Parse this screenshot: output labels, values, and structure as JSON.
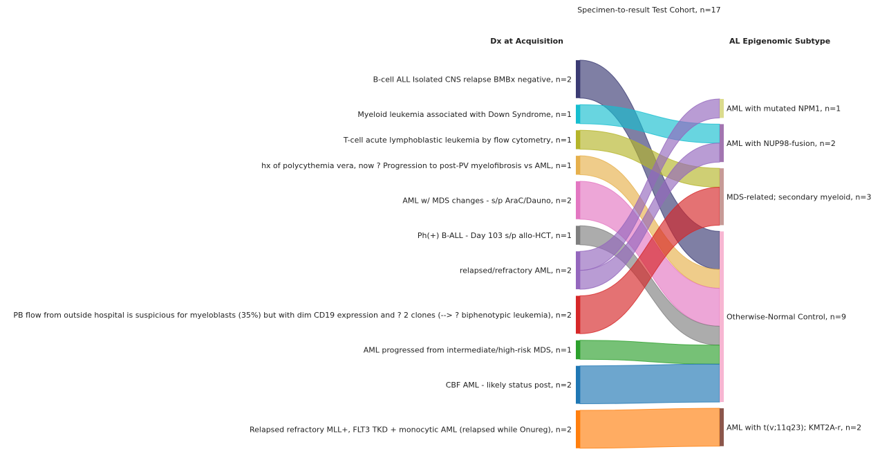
{
  "chart_data": {
    "type": "sankey",
    "title": "Specimen-to-result Test Cohort, n=17",
    "left_header": "Dx at Acquisition",
    "right_header": "AL Epigenomic Subtype",
    "left_nodes": [
      {
        "id": "L0",
        "label": "B-cell ALL Isolated CNS relapse BMBx negative, n=2",
        "value": 2,
        "color": "#3b3b73"
      },
      {
        "id": "L1",
        "label": "Myeloid leukemia associated with Down Syndrome, n=1",
        "value": 1,
        "color": "#17becf"
      },
      {
        "id": "L2",
        "label": "T-cell acute lymphoblastic leukemia by flow cytometry, n=1",
        "value": 1,
        "color": "#b5b52a"
      },
      {
        "id": "L3",
        "label": "hx of polycythemia vera, now ? Progression to post-PV myelofibrosis vs AML, n=1",
        "value": 1,
        "color": "#e6b04c"
      },
      {
        "id": "L4",
        "label": "AML w/ MDS changes - s/p AraC/Dauno, n=2",
        "value": 2,
        "color": "#e377c2"
      },
      {
        "id": "L5",
        "label": "Ph(+) B-ALL - Day 103 s/p allo-HCT, n=1",
        "value": 1,
        "color": "#7f7f7f"
      },
      {
        "id": "L6",
        "label": "relapsed/refractory AML, n=2",
        "value": 2,
        "color": "#9467bd"
      },
      {
        "id": "L7",
        "label": "PB flow from outside hospital is suspicious for myeloblasts (35%) but with dim CD19 expression and ? 2 clones (--> ? biphenotypic leukemia), n=2",
        "value": 2,
        "color": "#d62728"
      },
      {
        "id": "L8",
        "label": "AML progressed from intermediate/high-risk MDS, n=1",
        "value": 1,
        "color": "#2ca02c"
      },
      {
        "id": "L9",
        "label": "CBF AML - likely status post, n=2",
        "value": 2,
        "color": "#1f77b4"
      },
      {
        "id": "L10",
        "label": "Relapsed refractory MLL+, FLT3 TKD + monocytic AML (relapsed while Onureg), n=2",
        "value": 2,
        "color": "#ff7f0e"
      }
    ],
    "right_nodes": [
      {
        "id": "R0",
        "label": "AML with mutated NPM1, n=1",
        "value": 1,
        "color": "#dbdb8d"
      },
      {
        "id": "R1",
        "label": "AML with NUP98-fusion, n=2",
        "value": 2,
        "color": "#a275b0"
      },
      {
        "id": "R2",
        "label": "MDS-related; secondary myeloid, n=3",
        "value": 3,
        "color": "#c79a96"
      },
      {
        "id": "R3",
        "label": "Otherwise-Normal Control, n=9",
        "value": 9,
        "color": "#f7b6d2"
      },
      {
        "id": "R4",
        "label": "AML with t(v;11q23); KMT2A-r, n=2",
        "value": 2,
        "color": "#8c564b"
      }
    ],
    "links": [
      {
        "source": "L0",
        "target": "R3",
        "value": 2
      },
      {
        "source": "L1",
        "target": "R1",
        "value": 1
      },
      {
        "source": "L2",
        "target": "R2",
        "value": 1
      },
      {
        "source": "L3",
        "target": "R3",
        "value": 1
      },
      {
        "source": "L4",
        "target": "R3",
        "value": 2
      },
      {
        "source": "L5",
        "target": "R3",
        "value": 1
      },
      {
        "source": "L6",
        "target": "R0",
        "value": 1
      },
      {
        "source": "L6",
        "target": "R1",
        "value": 1
      },
      {
        "source": "L7",
        "target": "R2",
        "value": 2
      },
      {
        "source": "L8",
        "target": "R3",
        "value": 1
      },
      {
        "source": "L9",
        "target": "R3",
        "value": 2
      },
      {
        "source": "L10",
        "target": "R4",
        "value": 2
      }
    ]
  }
}
